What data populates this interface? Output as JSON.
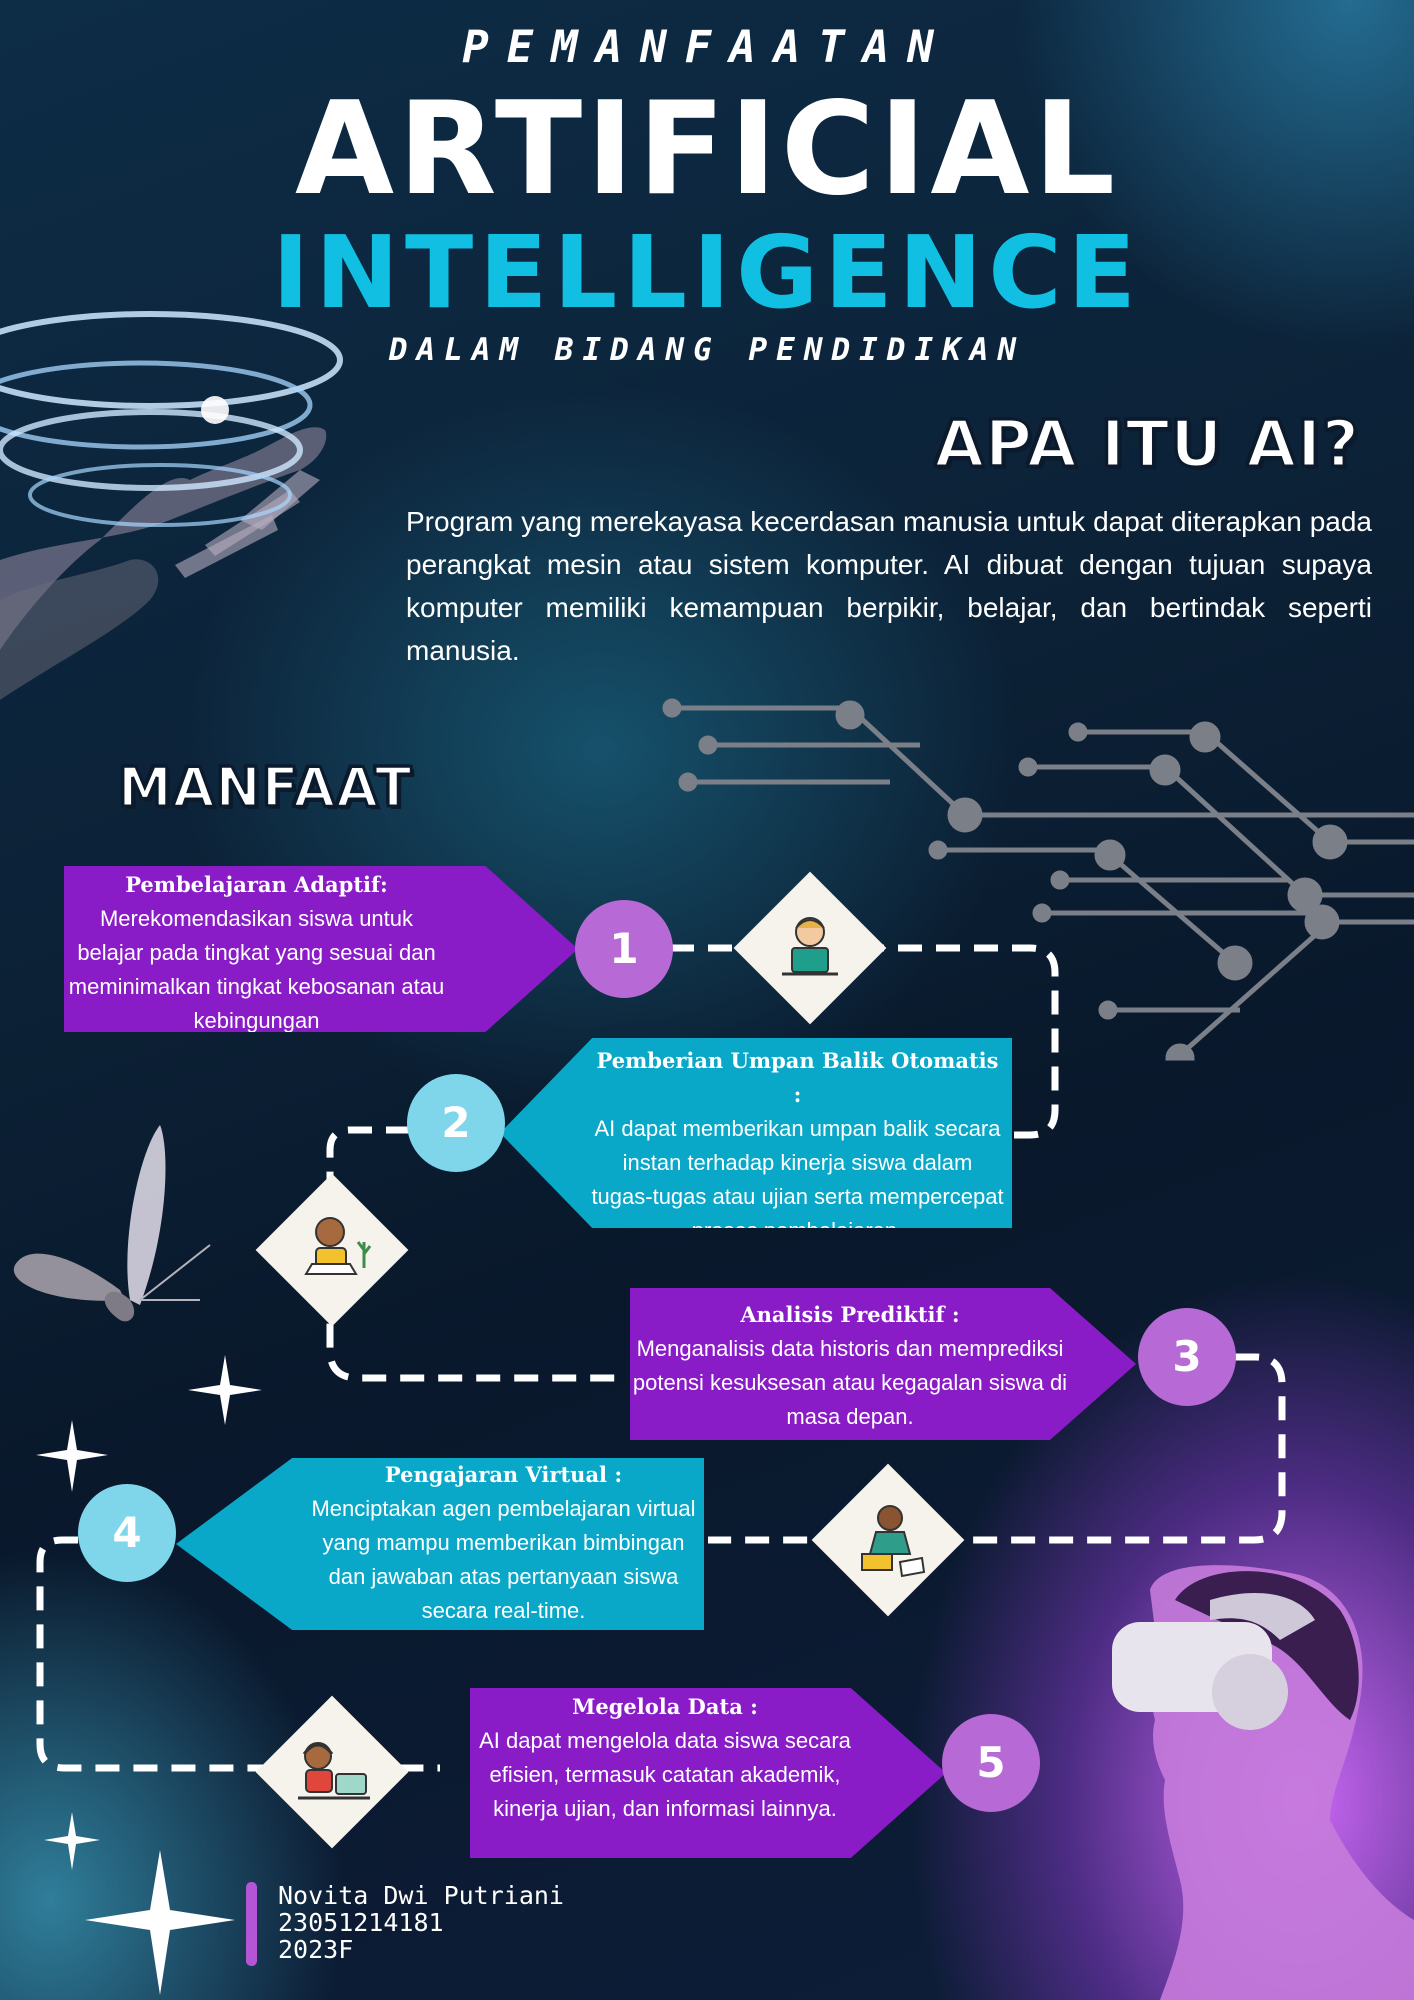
{
  "header": {
    "line1": "PEMANFAATAN",
    "line2": "ARTIFICIAL",
    "line3": "INTELLIGENCE",
    "line4": "DALAM BIDANG PENDIDIKAN"
  },
  "about": {
    "heading": "APA ITU AI?",
    "text": "Program yang merekayasa kecerdasan manusia untuk dapat diterapkan pada perangkat mesin atau sistem komputer. AI dibuat dengan tujuan supaya komputer memiliki kemampuan berpikir, belajar, dan bertindak seperti manusia."
  },
  "benefits": {
    "heading": "MANFAAT",
    "items": [
      {
        "number": "1",
        "title": "Pembelajaran Adaptif:",
        "text": "Merekomendasikan siswa untuk belajar pada tingkat yang sesuai dan meminimalkan tingkat kebosanan atau kebingungan"
      },
      {
        "number": "2",
        "title": "Pemberian Umpan Balik Otomatis :",
        "text": "AI dapat memberikan umpan balik secara instan terhadap kinerja siswa dalam tugas-tugas atau ujian serta mempercepat proses pembelajaran."
      },
      {
        "number": "3",
        "title": "Analisis Prediktif :",
        "text": "Menganalisis data historis dan memprediksi potensi kesuksesan atau kegagalan siswa di masa depan."
      },
      {
        "number": "4",
        "title": "Pengajaran Virtual :",
        "text": "Menciptakan agen pembelajaran virtual yang mampu memberikan bimbingan dan jawaban atas pertanyaan siswa secara real-time."
      },
      {
        "number": "5",
        "title": "Megelola Data :",
        "text": "AI dapat mengelola data siswa secara efisien, termasuk catatan akademik, kinerja ujian, dan informasi lainnya."
      }
    ]
  },
  "author": {
    "name": "Novita Dwi Putriani",
    "id": "23051214181",
    "class": "2023F"
  },
  "colors": {
    "accent_cyan": "#11bfe3",
    "box_purple": "#8a1cc7",
    "box_cyan": "#0aa8c8"
  }
}
